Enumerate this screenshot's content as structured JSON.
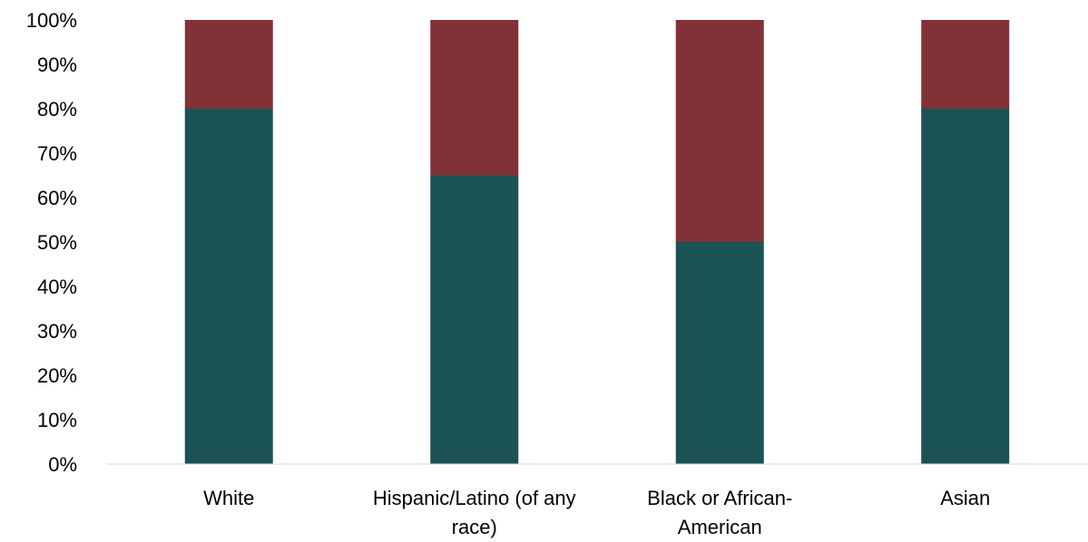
{
  "chart_data": {
    "type": "bar",
    "stacked": true,
    "percent": true,
    "categories": [
      [
        "White"
      ],
      [
        "Hispanic/Latino (of any",
        "race)"
      ],
      [
        "Black or African-",
        "American"
      ],
      [
        "Asian"
      ]
    ],
    "series": [
      {
        "values": [
          80,
          65,
          50,
          80
        ],
        "color": "#1b5253"
      },
      {
        "values": [
          20,
          35,
          50,
          20
        ],
        "color": "#823236"
      }
    ],
    "yticks": [
      "0%",
      "10%",
      "20%",
      "30%",
      "40%",
      "50%",
      "60%",
      "70%",
      "80%",
      "90%",
      "100%"
    ],
    "ylim": [
      0,
      100
    ],
    "grid": false,
    "legend": "none",
    "title": "",
    "xlabel": "",
    "ylabel": ""
  }
}
